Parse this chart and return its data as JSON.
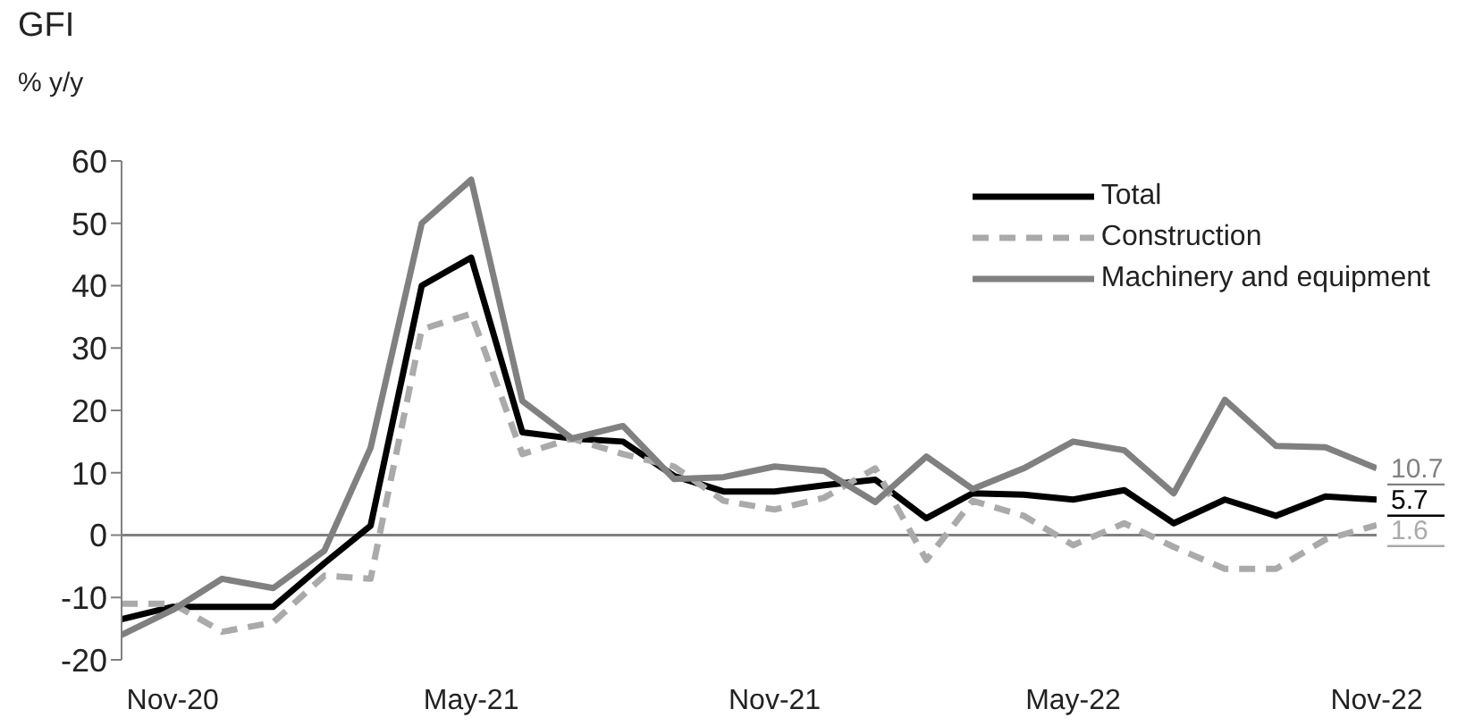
{
  "chart_data": {
    "type": "line",
    "title": "GFI",
    "ylabel": "% y/y",
    "x": [
      "2020-10",
      "2020-11",
      "2020-12",
      "2021-01",
      "2021-02",
      "2021-03",
      "2021-04",
      "2021-05",
      "2021-06",
      "2021-07",
      "2021-08",
      "2021-09",
      "2021-10",
      "2021-11",
      "2021-12",
      "2022-01",
      "2022-02",
      "2022-03",
      "2022-04",
      "2022-05",
      "2022-06",
      "2022-07",
      "2022-08",
      "2022-09",
      "2022-10",
      "2022-11"
    ],
    "series": [
      {
        "name": "Total",
        "color": "#000000",
        "line_style": "solid",
        "values": [
          -13.5,
          -11.5,
          -11.5,
          -11.5,
          -4.5,
          1.5,
          40,
          44.5,
          16.5,
          15.5,
          15,
          9.5,
          7,
          7,
          8,
          8.9,
          2.7,
          6.7,
          6.5,
          5.7,
          7.2,
          1.9,
          5.7,
          3.1,
          6.2,
          5.7
        ],
        "value_labels": [
          null,
          null,
          null,
          null,
          null,
          null,
          null,
          null,
          null,
          null,
          null,
          null,
          null,
          null,
          null,
          null,
          null,
          null,
          null,
          null,
          null,
          null,
          null,
          null,
          null,
          "5.7"
        ]
      },
      {
        "name": "Construction",
        "color": "#aaaaaa",
        "line_style": "dashed",
        "values": [
          -11,
          -11,
          -15.5,
          -14,
          -6.5,
          -7,
          33,
          35.5,
          13,
          15.5,
          13,
          11,
          5.5,
          4.1,
          6,
          10.7,
          -4,
          5.5,
          3.1,
          -1.6,
          1.9,
          -1.9,
          -5.4,
          -5.4,
          -0.7,
          1.6
        ],
        "value_labels": [
          null,
          null,
          null,
          null,
          null,
          null,
          null,
          null,
          null,
          null,
          null,
          null,
          null,
          null,
          null,
          null,
          null,
          null,
          null,
          null,
          null,
          null,
          null,
          null,
          null,
          "1.6"
        ]
      },
      {
        "name": "Machinery and equipment",
        "color": "#808080",
        "line_style": "solid",
        "values": [
          -16,
          -12,
          -7,
          -8.5,
          -2.5,
          14,
          50,
          57,
          21.5,
          15.5,
          17.5,
          9,
          9.3,
          11,
          10.3,
          5.3,
          12.6,
          7.4,
          10.7,
          15,
          13.6,
          6.7,
          21.7,
          14.3,
          14.1,
          10.7
        ],
        "value_labels": [
          null,
          null,
          null,
          null,
          null,
          null,
          null,
          null,
          null,
          null,
          null,
          null,
          null,
          null,
          null,
          null,
          null,
          null,
          null,
          null,
          null,
          null,
          null,
          null,
          null,
          "10.7"
        ]
      }
    ],
    "xlim": [
      "2020-10",
      "2022-11"
    ],
    "xticks": [
      {
        "value": "2020-11",
        "label": "Nov-20"
      },
      {
        "value": "2021-05",
        "label": "May-21"
      },
      {
        "value": "2021-11",
        "label": "Nov-21"
      },
      {
        "value": "2022-05",
        "label": "May-22"
      },
      {
        "value": "2022-11",
        "label": "Nov-22"
      }
    ],
    "ylim": [
      -20,
      60
    ],
    "yticks": [
      -20,
      -10,
      0,
      10,
      20,
      30,
      40,
      50,
      60
    ],
    "ref_lines": [
      {
        "axis": "y",
        "value": 0,
        "color": "#808080"
      }
    ],
    "grid": false,
    "legend": "top right",
    "marker": "none"
  }
}
